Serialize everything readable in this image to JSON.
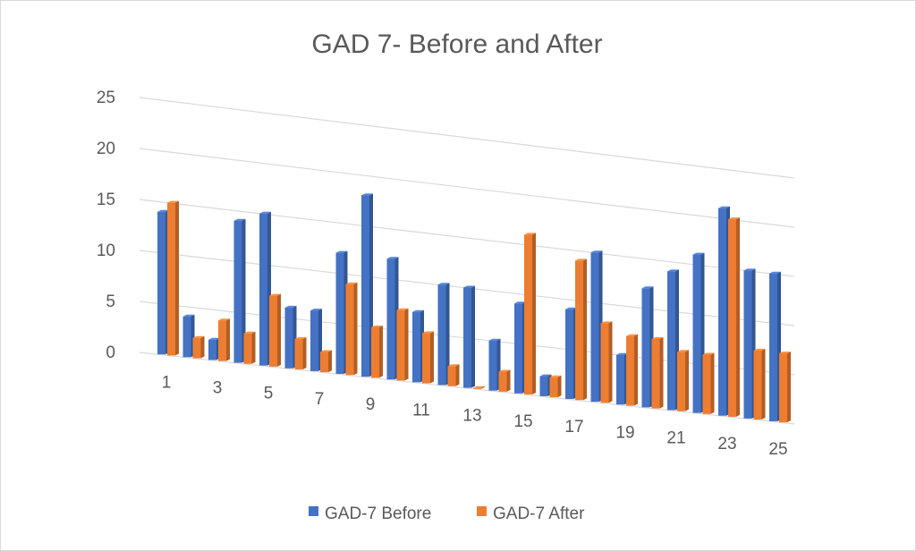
{
  "chart_data": {
    "type": "bar",
    "title": "GAD 7- Before and After",
    "categories": [
      "1",
      "2",
      "3",
      "4",
      "5",
      "6",
      "7",
      "8",
      "9",
      "10",
      "11",
      "12",
      "13",
      "14",
      "15",
      "16",
      "17",
      "18",
      "19",
      "20",
      "21",
      "22",
      "23",
      "24",
      "25"
    ],
    "x_tick_labels": [
      "1",
      "3",
      "5",
      "7",
      "9",
      "11",
      "13",
      "15",
      "17",
      "19",
      "21",
      "23",
      "25"
    ],
    "y_tick_labels": [
      "0",
      "5",
      "10",
      "15",
      "20",
      "25"
    ],
    "ylim": [
      0,
      25
    ],
    "grid": true,
    "legend": "bottom",
    "series": [
      {
        "name": "GAD-7 Before",
        "color": "#4472C4",
        "values": [
          14,
          4,
          2,
          14,
          15,
          6,
          6,
          12,
          18,
          12,
          7,
          10,
          10,
          5,
          9,
          2,
          9,
          15,
          5,
          12,
          14,
          16,
          21,
          15,
          15
        ]
      },
      {
        "name": "GAD-7 After",
        "color": "#ED7D31",
        "values": [
          15,
          2,
          4,
          3,
          7,
          3,
          2,
          9,
          5,
          7,
          5,
          2,
          0,
          2,
          16,
          2,
          14,
          8,
          7,
          7,
          6,
          6,
          20,
          7,
          7
        ]
      }
    ]
  }
}
